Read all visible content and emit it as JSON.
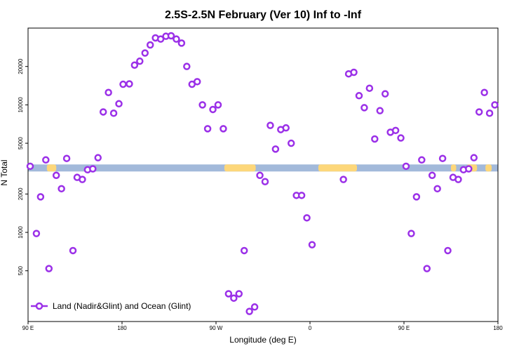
{
  "chart_data": {
    "type": "scatter",
    "title": "2.5S-2.5N February (Ver 10)   Inf to -Inf",
    "xlabel": "Longitude (deg E)",
    "ylabel": "N Total",
    "x_scale": "linear",
    "y_scale": "log",
    "xlim": [
      90,
      540
    ],
    "ylim": [
      200,
      40000
    ],
    "x_ticks": [
      {
        "value": 90,
        "label": "90 E"
      },
      {
        "value": 180,
        "label": "180"
      },
      {
        "value": 270,
        "label": "90 W"
      },
      {
        "value": 360,
        "label": "0"
      },
      {
        "value": 450,
        "label": "90 E"
      },
      {
        "value": 540,
        "label": "180"
      }
    ],
    "y_ticks": [
      {
        "value": 500,
        "label": "500"
      },
      {
        "value": 1000,
        "label": "1000"
      },
      {
        "value": 2000,
        "label": "2000"
      },
      {
        "value": 5000,
        "label": "5000"
      },
      {
        "value": 10000,
        "label": "10000"
      },
      {
        "value": 20000,
        "label": "20000"
      }
    ],
    "land_band": {
      "y_value": 3200,
      "ocean_color": "#a2b9da",
      "land_color": "#fdd77a",
      "land_segments": [
        [
          108,
          117
        ],
        [
          278,
          308
        ],
        [
          368,
          405
        ],
        [
          495,
          500
        ],
        [
          510,
          520
        ],
        [
          528,
          534
        ]
      ]
    },
    "series": [
      {
        "name": "Land (Nadir&Glint) and Ocean (Glint)",
        "color": "#9b30e8",
        "points": [
          [
            92,
            3300
          ],
          [
            98,
            980
          ],
          [
            102,
            1900
          ],
          [
            107,
            3700
          ],
          [
            110,
            520
          ],
          [
            117,
            2800
          ],
          [
            122,
            2200
          ],
          [
            127,
            3800
          ],
          [
            133,
            720
          ],
          [
            137,
            2700
          ],
          [
            142,
            2600
          ],
          [
            147,
            3100
          ],
          [
            152,
            3150
          ],
          [
            157,
            3850
          ],
          [
            162,
            8800
          ],
          [
            167,
            12500
          ],
          [
            172,
            8600
          ],
          [
            177,
            10200
          ],
          [
            181,
            14500
          ],
          [
            187,
            14600
          ],
          [
            192,
            20500
          ],
          [
            197,
            22000
          ],
          [
            202,
            25500
          ],
          [
            207,
            29500
          ],
          [
            212,
            33500
          ],
          [
            217,
            32800
          ],
          [
            222,
            34500
          ],
          [
            227,
            34800
          ],
          [
            232,
            32800
          ],
          [
            237,
            30500
          ],
          [
            242,
            20000
          ],
          [
            247,
            14500
          ],
          [
            252,
            15200
          ],
          [
            257,
            10000
          ],
          [
            262,
            6500
          ],
          [
            267,
            9200
          ],
          [
            272,
            10000
          ],
          [
            277,
            6500
          ],
          [
            282,
            330
          ],
          [
            287,
            305
          ],
          [
            292,
            330
          ],
          [
            297,
            720
          ],
          [
            302,
            240
          ],
          [
            307,
            260
          ],
          [
            312,
            2800
          ],
          [
            317,
            2500
          ],
          [
            322,
            6900
          ],
          [
            327,
            4500
          ],
          [
            332,
            6400
          ],
          [
            337,
            6600
          ],
          [
            342,
            5000
          ],
          [
            347,
            1950
          ],
          [
            352,
            1950
          ],
          [
            357,
            1300
          ],
          [
            362,
            800
          ],
          [
            392,
            2600
          ],
          [
            397,
            17500
          ],
          [
            402,
            18000
          ],
          [
            407,
            11800
          ],
          [
            412,
            9500
          ],
          [
            417,
            13500
          ],
          [
            422,
            5400
          ],
          [
            427,
            9000
          ],
          [
            432,
            12200
          ],
          [
            437,
            6100
          ],
          [
            442,
            6300
          ],
          [
            447,
            5500
          ],
          [
            452,
            3300
          ],
          [
            457,
            980
          ],
          [
            462,
            1900
          ],
          [
            467,
            3700
          ],
          [
            472,
            520
          ],
          [
            477,
            2800
          ],
          [
            482,
            2200
          ],
          [
            487,
            3800
          ],
          [
            492,
            720
          ],
          [
            497,
            2700
          ],
          [
            502,
            2600
          ],
          [
            507,
            3100
          ],
          [
            512,
            3150
          ],
          [
            517,
            3850
          ],
          [
            522,
            8800
          ],
          [
            527,
            12500
          ],
          [
            532,
            8600
          ],
          [
            537,
            10000
          ]
        ]
      }
    ],
    "legend": {
      "position": "bottom-left",
      "label": "Land (Nadir&Glint) and Ocean (Glint)"
    },
    "grid": false
  }
}
